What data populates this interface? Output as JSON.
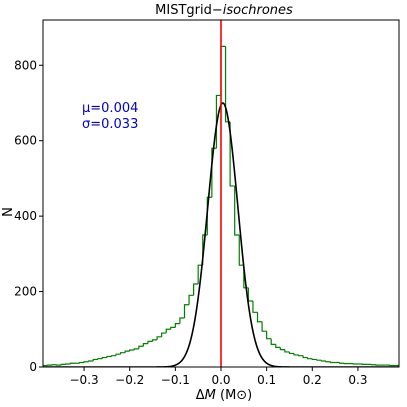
{
  "chart_data": {
    "type": "histogram",
    "title": {
      "prefix": "MISTgrid−",
      "italic": "isochrones"
    },
    "xlabel": {
      "delta": "Δ",
      "symbol": "M",
      "unit": "(M⊙)"
    },
    "ylabel": "N",
    "xlim": [
      -0.39,
      0.39
    ],
    "ylim": [
      0,
      920
    ],
    "x_ticks": [
      {
        "value": -0.3,
        "label": "−0.3"
      },
      {
        "value": -0.2,
        "label": "−0.2"
      },
      {
        "value": -0.1,
        "label": "−0.1"
      },
      {
        "value": 0.0,
        "label": "0.0"
      },
      {
        "value": 0.1,
        "label": "0.1"
      },
      {
        "value": 0.2,
        "label": "0.2"
      },
      {
        "value": 0.3,
        "label": "0.3"
      }
    ],
    "y_ticks": [
      {
        "value": 0,
        "label": "0"
      },
      {
        "value": 200,
        "label": "200"
      },
      {
        "value": 400,
        "label": "400"
      },
      {
        "value": 600,
        "label": "600"
      },
      {
        "value": 800,
        "label": "800"
      }
    ],
    "histogram": {
      "color": "#008000",
      "bin_width": 0.01,
      "bin_centers": [
        -0.385,
        -0.375,
        -0.365,
        -0.355,
        -0.345,
        -0.335,
        -0.325,
        -0.315,
        -0.305,
        -0.295,
        -0.285,
        -0.275,
        -0.265,
        -0.255,
        -0.245,
        -0.235,
        -0.225,
        -0.215,
        -0.205,
        -0.195,
        -0.185,
        -0.175,
        -0.165,
        -0.155,
        -0.145,
        -0.135,
        -0.125,
        -0.115,
        -0.105,
        -0.095,
        -0.085,
        -0.075,
        -0.065,
        -0.055,
        -0.045,
        -0.035,
        -0.025,
        -0.015,
        -0.005,
        0.005,
        0.015,
        0.025,
        0.035,
        0.045,
        0.055,
        0.065,
        0.075,
        0.085,
        0.095,
        0.105,
        0.115,
        0.125,
        0.135,
        0.145,
        0.155,
        0.165,
        0.175,
        0.185,
        0.195,
        0.205,
        0.215,
        0.225,
        0.235,
        0.245,
        0.255,
        0.265,
        0.275,
        0.285,
        0.295,
        0.305,
        0.315,
        0.325,
        0.335,
        0.345,
        0.355,
        0.365,
        0.375,
        0.385
      ],
      "counts": [
        4,
        5,
        6,
        5,
        7,
        8,
        10,
        10,
        12,
        14,
        16,
        20,
        22,
        25,
        28,
        30,
        34,
        38,
        42,
        45,
        48,
        55,
        62,
        68,
        72,
        80,
        90,
        100,
        105,
        115,
        130,
        165,
        190,
        220,
        270,
        350,
        450,
        580,
        720,
        850,
        650,
        480,
        350,
        270,
        210,
        175,
        145,
        120,
        95,
        75,
        60,
        52,
        46,
        40,
        36,
        32,
        30,
        25,
        22,
        20,
        18,
        16,
        14,
        12,
        12,
        10,
        9,
        9,
        8,
        8,
        7,
        7,
        6,
        5,
        5,
        5,
        4,
        4
      ]
    },
    "gaussian_fit": {
      "color": "#000000",
      "mu": 0.004,
      "sigma": 0.033,
      "amplitude": 700
    },
    "vertical_line": {
      "color": "#ff0000",
      "x": 0.0
    },
    "annotation": {
      "color": "#0000cc",
      "mu_text": "μ=0.004",
      "sigma_text": "σ=0.033"
    }
  }
}
